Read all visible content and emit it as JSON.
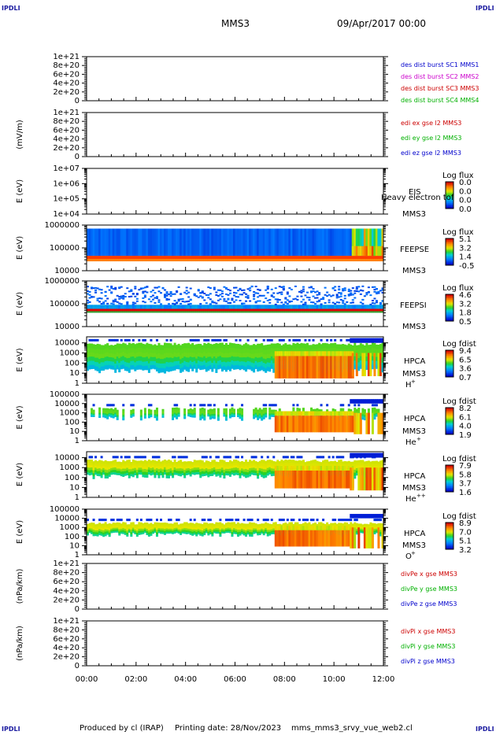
{
  "header": {
    "corner_label": "IPDLI",
    "spacecraft": "MMS3",
    "date": "09/Apr/2017 00:00"
  },
  "footer": {
    "produced_by": "Produced by cl (IRAP)",
    "printing_date": "Printing date: 28/Nov/2023",
    "script_name": "mms_mms3_srvy_vue_web2.cl"
  },
  "x_axis": {
    "ticks": [
      "00:00",
      "02:00",
      "04:00",
      "06:00",
      "08:00",
      "10:00",
      "12:00"
    ],
    "range_hours": [
      0,
      12
    ]
  },
  "chart_data": [
    {
      "type": "line",
      "title": "",
      "ylabel": "",
      "yticks": [
        "1e+21",
        "8e+20",
        "6e+20",
        "4e+20",
        "2e+20",
        "0"
      ],
      "ylim": [
        0,
        1e+21
      ],
      "zero_line": "dashed",
      "series": [
        {
          "name": "des dist burst SC1 MMS1",
          "color": "#0000cc",
          "values": []
        },
        {
          "name": "des dist burst SC2 MMS2",
          "color": "#cc00cc",
          "values": []
        },
        {
          "name": "des dist burst SC3 MMS3",
          "color": "#cc0000",
          "values": []
        },
        {
          "name": "des dist burst SC4 MMS4",
          "color": "#00b000",
          "values": []
        }
      ]
    },
    {
      "type": "line",
      "ylabel": "(mV/m)",
      "yticks": [
        "1e+21",
        "8e+20",
        "6e+20",
        "4e+20",
        "2e+20",
        "0"
      ],
      "ylim": [
        0,
        1e+21
      ],
      "zero_line": "dashed",
      "series": [
        {
          "name": "edi ex gse l2 MMS3",
          "color": "#cc0000",
          "values": []
        },
        {
          "name": "edi ey gse l2 MMS3",
          "color": "#00b000",
          "values": []
        },
        {
          "name": "edi ez gse l2 MMS3",
          "color": "#0000cc",
          "values": []
        }
      ]
    },
    {
      "type": "heatmap",
      "ylabel": "E (eV)",
      "yscale": "log",
      "yticks": [
        "1e+07",
        "1e+06",
        "1e+05",
        "1e+04"
      ],
      "ylim": [
        10000,
        10000000
      ],
      "instrument": "EIS",
      "spacecraft": "MMS3",
      "overlay_text": "Heavy electron tof",
      "colorbar_title": "Log flux",
      "colorbar_ticks": [
        "0.0",
        "0.0",
        "0.0",
        "0.0"
      ],
      "values": []
    },
    {
      "type": "heatmap",
      "ylabel": "E (eV)",
      "yscale": "log",
      "yticks": [
        "1000000",
        "100000",
        "10000"
      ],
      "ylim": [
        10000,
        1000000
      ],
      "instrument": "FEEPSE",
      "spacecraft": "MMS3",
      "colorbar_title": "Log flux",
      "colorbar_ticks": [
        "5.1",
        "3.2",
        "1.4",
        "-0.5"
      ]
    },
    {
      "type": "heatmap",
      "ylabel": "E (eV)",
      "yscale": "log",
      "yticks": [
        "1000000",
        "100000",
        "10000"
      ],
      "ylim": [
        10000,
        1000000
      ],
      "instrument": "FEEPSI",
      "spacecraft": "MMS3",
      "colorbar_title": "Log flux",
      "colorbar_ticks": [
        "4.6",
        "3.2",
        "1.8",
        "0.5"
      ]
    },
    {
      "type": "heatmap",
      "ylabel": "E (eV)",
      "yscale": "log",
      "yticks": [
        "10000",
        "1000",
        "100",
        "10",
        "1"
      ],
      "ylim": [
        1,
        40000
      ],
      "instrument": "HPCA",
      "spacecraft": "MMS3",
      "species": "H",
      "species_sup": "+",
      "colorbar_title": "Log fdist",
      "colorbar_ticks": [
        "9.4",
        "6.5",
        "3.6",
        "0.7"
      ]
    },
    {
      "type": "heatmap",
      "ylabel": "E (eV)",
      "yscale": "log",
      "yticks": [
        "100000",
        "10000",
        "1000",
        "100",
        "10",
        "1"
      ],
      "ylim": [
        1,
        100000
      ],
      "instrument": "HPCA",
      "spacecraft": "MMS3",
      "species": "He",
      "species_sup": "+",
      "colorbar_title": "Log fdist",
      "colorbar_ticks": [
        "8.2",
        "6.1",
        "4.0",
        "1.9"
      ]
    },
    {
      "type": "heatmap",
      "ylabel": "E (eV)",
      "yscale": "log",
      "yticks": [
        "10000",
        "1000",
        "100",
        "10",
        "1"
      ],
      "ylim": [
        1,
        40000
      ],
      "instrument": "HPCA",
      "spacecraft": "MMS3",
      "species": "He",
      "species_sup": "++",
      "colorbar_title": "Log fdist",
      "colorbar_ticks": [
        "7.9",
        "5.8",
        "3.7",
        "1.6"
      ]
    },
    {
      "type": "heatmap",
      "ylabel": "E (eV)",
      "yscale": "log",
      "yticks": [
        "100000",
        "10000",
        "1000",
        "100",
        "10",
        "1"
      ],
      "ylim": [
        1,
        100000
      ],
      "instrument": "HPCA",
      "spacecraft": "MMS3",
      "species": "O",
      "species_sup": "+",
      "colorbar_title": "Log fdist",
      "colorbar_ticks": [
        "8.9",
        "7.0",
        "5.1",
        "3.2"
      ]
    },
    {
      "type": "line",
      "ylabel": "(nPa/km)",
      "yticks": [
        "1e+21",
        "8e+20",
        "6e+20",
        "4e+20",
        "2e+20",
        "0"
      ],
      "ylim": [
        0,
        1e+21
      ],
      "zero_line": "dashed",
      "series": [
        {
          "name": "divPe x gse MMS3",
          "color": "#cc0000",
          "values": []
        },
        {
          "name": "divPe y gse MMS3",
          "color": "#00b000",
          "values": []
        },
        {
          "name": "divPe z gse MMS3",
          "color": "#0000cc",
          "values": []
        }
      ]
    },
    {
      "type": "line",
      "ylabel": "(nPa/km)",
      "yticks": [
        "1e+21",
        "8e+20",
        "6e+20",
        "4e+20",
        "2e+20",
        "0"
      ],
      "ylim": [
        0,
        1e+21
      ],
      "zero_line": "dashed",
      "series": [
        {
          "name": "divPi x gse MMS3",
          "color": "#cc0000",
          "values": []
        },
        {
          "name": "divPi y gse MMS3",
          "color": "#00b000",
          "values": []
        },
        {
          "name": "divPi z gse MMS3",
          "color": "#0000cc",
          "values": []
        }
      ]
    }
  ]
}
